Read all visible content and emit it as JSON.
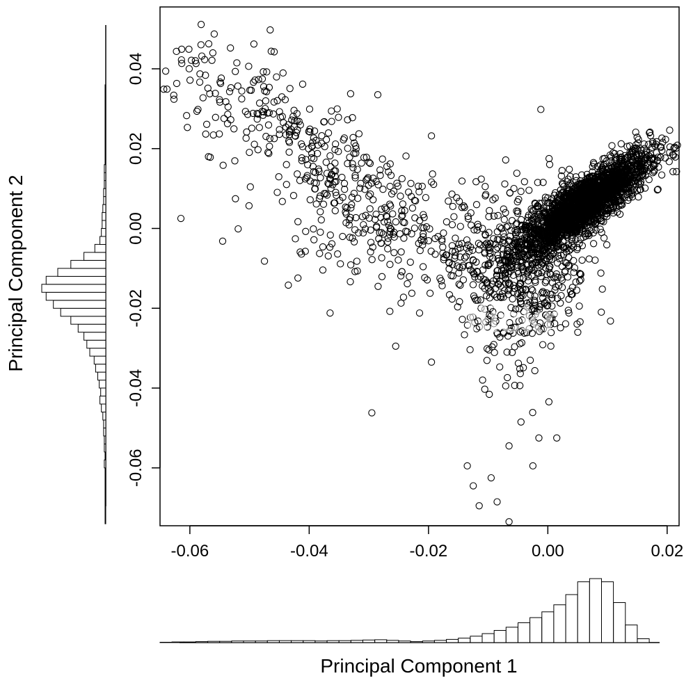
{
  "chart_data": {
    "type": "scatter",
    "title": "",
    "xlabel": "Principal Component 1",
    "ylabel": "Principal Component 2",
    "xlim": [
      -0.065,
      0.022
    ],
    "ylim": [
      -0.0745,
      0.0555
    ],
    "x_ticks": [
      -0.06,
      -0.04,
      -0.02,
      0.0,
      0.02
    ],
    "x_tick_labels": [
      "-0.06",
      "-0.04",
      "-0.02",
      "0.00",
      "0.02"
    ],
    "y_ticks": [
      -0.06,
      -0.04,
      -0.02,
      0.0,
      0.02,
      0.04
    ],
    "y_tick_labels": [
      "-0.06",
      "-0.04",
      "-0.02",
      "0.00",
      "0.02",
      "0.04"
    ],
    "grid": false,
    "marker": "open-circle",
    "point_color": "#000000",
    "watermark": "flickr",
    "clusters": [
      {
        "center": [
          0.006,
          0.006
        ],
        "spread": [
          0.0055,
          0.0065
        ],
        "correlation": 0.85,
        "count": 2200
      },
      {
        "center": [
          -0.003,
          -0.012
        ],
        "spread": [
          0.005,
          0.012
        ],
        "correlation": 0.35,
        "count": 420
      },
      {
        "center": [
          -0.042,
          0.022
        ],
        "spread": [
          0.011,
          0.012
        ],
        "correlation": -0.8,
        "count": 280
      },
      {
        "center": [
          -0.03,
          0.002
        ],
        "spread": [
          0.008,
          0.008
        ],
        "correlation": -0.3,
        "count": 180
      },
      {
        "center": [
          -0.012,
          -0.005
        ],
        "spread": [
          0.006,
          0.008
        ],
        "correlation": 0.0,
        "count": 160
      }
    ],
    "outliers": [
      [
        -0.0615,
        0.0025
      ],
      [
        -0.0545,
        -0.0032
      ],
      [
        -0.0475,
        -0.0082
      ],
      [
        -0.0295,
        -0.0462
      ],
      [
        -0.0065,
        -0.0735
      ],
      [
        -0.0115,
        -0.0695
      ],
      [
        -0.0125,
        -0.0645
      ],
      [
        -0.0025,
        -0.0595
      ],
      [
        -0.0015,
        -0.0525
      ],
      [
        0.0015,
        -0.0525
      ],
      [
        -0.0085,
        -0.0685
      ],
      [
        -0.0135,
        -0.0595
      ],
      [
        -0.0065,
        -0.0545
      ],
      [
        -0.0095,
        -0.0625
      ],
      [
        -0.0045,
        -0.0485
      ],
      [
        -0.0365,
        -0.0212
      ],
      [
        -0.0435,
        -0.0142
      ],
      [
        -0.0215,
        -0.0212
      ],
      [
        -0.0195,
        -0.0335
      ],
      [
        -0.0255,
        -0.0295
      ],
      [
        0.0105,
        -0.0232
      ],
      [
        -0.0105,
        0.0105
      ],
      [
        -0.0195,
        0.0232
      ],
      [
        -0.0285,
        0.0335
      ]
    ],
    "histogram_x": {
      "bin_start": -0.065,
      "bin_width": 0.002,
      "counts": [
        1,
        2,
        2,
        3,
        4,
        4,
        5,
        5,
        5,
        6,
        6,
        6,
        6,
        5,
        6,
        6,
        7,
        8,
        9,
        7,
        5,
        3,
        5,
        7,
        10,
        14,
        20,
        28,
        38,
        48,
        62,
        78,
        96,
        118,
        150,
        190,
        200,
        190,
        125,
        55,
        12
      ]
    },
    "histogram_y": {
      "bin_start": -0.074,
      "bin_width": 0.002,
      "counts": [
        1,
        1,
        1,
        1,
        1,
        1,
        1,
        2,
        1,
        2,
        2,
        3,
        3,
        4,
        6,
        8,
        7,
        9,
        11,
        14,
        16,
        22,
        26,
        30,
        38,
        48,
        62,
        72,
        82,
        88,
        82,
        66,
        48,
        30,
        15,
        8,
        6,
        5,
        5,
        4,
        3,
        3,
        2,
        2,
        2,
        1,
        1,
        1,
        1,
        1,
        1,
        1,
        1,
        1,
        1
      ]
    }
  }
}
